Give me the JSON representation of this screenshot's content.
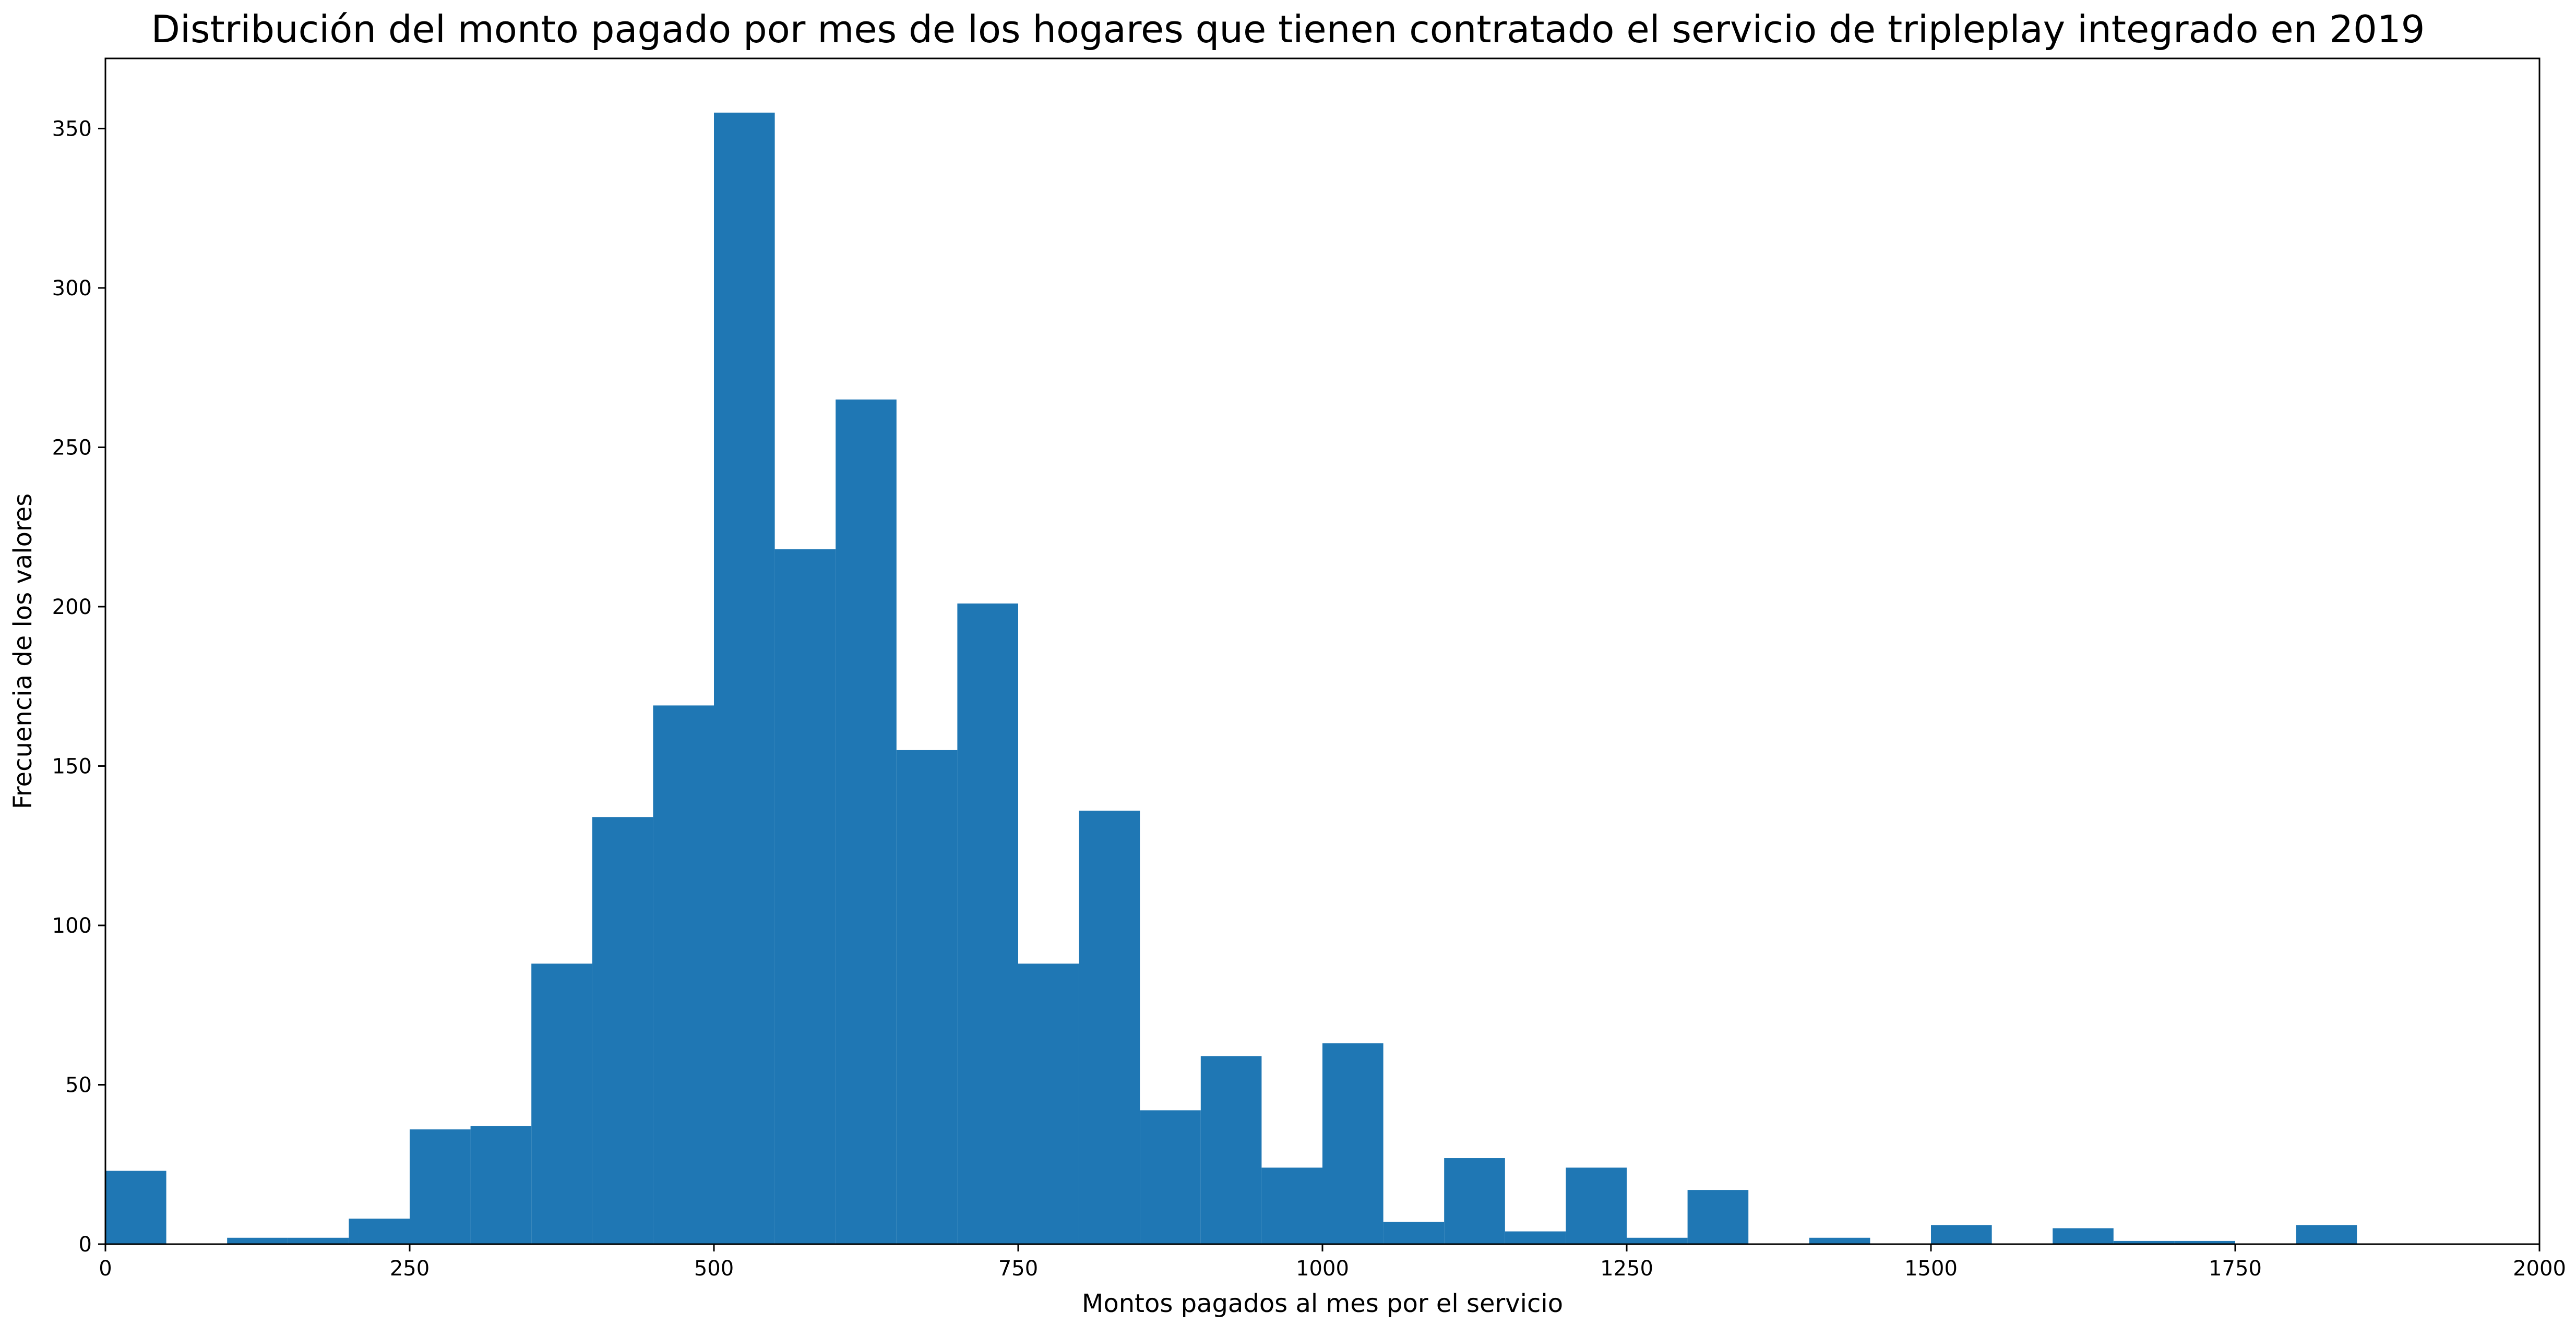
{
  "chart_data": {
    "type": "bar",
    "title": "Distribución del monto pagado por mes de los hogares que tienen contratado el servicio de tripleplay integrado en 2019",
    "xlabel": "Montos pagados al mes por el servicio",
    "ylabel": "Frecuencia de los valores",
    "xlim": [
      0,
      2000
    ],
    "ylim": [
      0,
      372
    ],
    "x_ticks": [
      0,
      250,
      500,
      750,
      1000,
      1250,
      1500,
      1750,
      2000
    ],
    "y_ticks": [
      0,
      50,
      100,
      150,
      200,
      250,
      300,
      350
    ],
    "bar_color": "#1f77b4",
    "grid": false,
    "bins": [
      {
        "x0": 0,
        "x1": 50,
        "value": 23
      },
      {
        "x0": 100,
        "x1": 150,
        "value": 2
      },
      {
        "x0": 150,
        "x1": 200,
        "value": 2
      },
      {
        "x0": 200,
        "x1": 250,
        "value": 8
      },
      {
        "x0": 250,
        "x1": 300,
        "value": 36
      },
      {
        "x0": 300,
        "x1": 350,
        "value": 37
      },
      {
        "x0": 350,
        "x1": 400,
        "value": 88
      },
      {
        "x0": 400,
        "x1": 450,
        "value": 134
      },
      {
        "x0": 450,
        "x1": 500,
        "value": 169
      },
      {
        "x0": 500,
        "x1": 550,
        "value": 355
      },
      {
        "x0": 550,
        "x1": 600,
        "value": 218
      },
      {
        "x0": 600,
        "x1": 650,
        "value": 265
      },
      {
        "x0": 650,
        "x1": 700,
        "value": 155
      },
      {
        "x0": 700,
        "x1": 750,
        "value": 201
      },
      {
        "x0": 750,
        "x1": 800,
        "value": 88
      },
      {
        "x0": 800,
        "x1": 850,
        "value": 136
      },
      {
        "x0": 850,
        "x1": 900,
        "value": 42
      },
      {
        "x0": 900,
        "x1": 950,
        "value": 59
      },
      {
        "x0": 950,
        "x1": 1000,
        "value": 24
      },
      {
        "x0": 1000,
        "x1": 1050,
        "value": 63
      },
      {
        "x0": 1050,
        "x1": 1100,
        "value": 7
      },
      {
        "x0": 1100,
        "x1": 1150,
        "value": 27
      },
      {
        "x0": 1150,
        "x1": 1200,
        "value": 4
      },
      {
        "x0": 1200,
        "x1": 1250,
        "value": 24
      },
      {
        "x0": 1250,
        "x1": 1300,
        "value": 2
      },
      {
        "x0": 1300,
        "x1": 1350,
        "value": 17
      },
      {
        "x0": 1400,
        "x1": 1450,
        "value": 2
      },
      {
        "x0": 1500,
        "x1": 1550,
        "value": 6
      },
      {
        "x0": 1600,
        "x1": 1650,
        "value": 5
      },
      {
        "x0": 1650,
        "x1": 1700,
        "value": 1
      },
      {
        "x0": 1700,
        "x1": 1750,
        "value": 1
      },
      {
        "x0": 1800,
        "x1": 1850,
        "value": 6
      }
    ]
  }
}
